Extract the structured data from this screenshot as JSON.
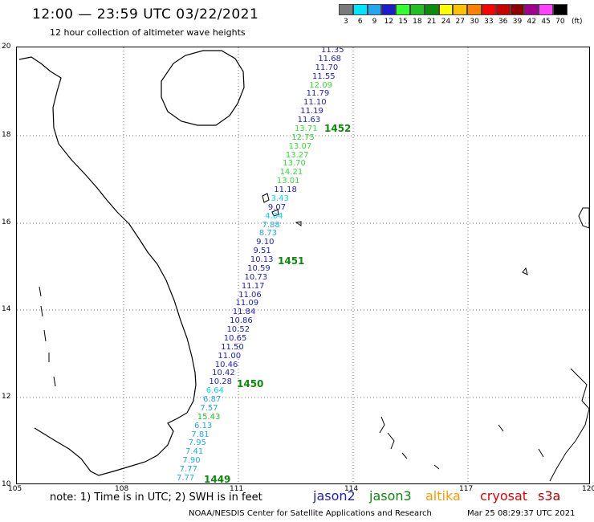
{
  "header": {
    "title": "12:00 — 23:59 UTC 03/22/2021",
    "subtitle": "12 hour collection of altimeter wave heights"
  },
  "scale": {
    "unit": "(ft)",
    "steps": [
      {
        "label": "3",
        "color": "#7a7a7a"
      },
      {
        "label": "6",
        "color": "#00e5ff"
      },
      {
        "label": "9",
        "color": "#22a7f0"
      },
      {
        "label": "12",
        "color": "#1c1cc8"
      },
      {
        "label": "15",
        "color": "#33ff33"
      },
      {
        "label": "18",
        "color": "#22c022"
      },
      {
        "label": "21",
        "color": "#0c8c0c"
      },
      {
        "label": "24",
        "color": "#ffff00"
      },
      {
        "label": "27",
        "color": "#ffc000"
      },
      {
        "label": "30",
        "color": "#ff8000"
      },
      {
        "label": "33",
        "color": "#ff0000"
      },
      {
        "label": "36",
        "color": "#c80000"
      },
      {
        "label": "39",
        "color": "#8c0000"
      },
      {
        "label": "42",
        "color": "#a00090"
      },
      {
        "label": "45",
        "color": "#ff40ff"
      },
      {
        "label": "70",
        "color": "#000000"
      }
    ]
  },
  "axes": {
    "lat_labels": [
      "20",
      "18",
      "16",
      "14",
      "12",
      "10"
    ],
    "lon_labels": [
      "105",
      "108",
      "111",
      "114",
      "117",
      "120"
    ]
  },
  "wave_heights": [
    {
      "v": "11.35",
      "c": "#1c1cc8"
    },
    {
      "v": "11.68",
      "c": "#1c1cc8"
    },
    {
      "v": "11.70",
      "c": "#1c1cc8"
    },
    {
      "v": "11.55",
      "c": "#1c1cc8"
    },
    {
      "v": "12.09",
      "c": "#33dd33"
    },
    {
      "v": "11.79",
      "c": "#1c1cc8"
    },
    {
      "v": "11.10",
      "c": "#1c1cc8"
    },
    {
      "v": "11.19",
      "c": "#1c1cc8"
    },
    {
      "v": "11.63",
      "c": "#1c1cc8"
    },
    {
      "v": "13.71",
      "c": "#33dd33"
    },
    {
      "v": "12.75",
      "c": "#33dd33"
    },
    {
      "v": "13.07",
      "c": "#33dd33"
    },
    {
      "v": "13.27",
      "c": "#33dd33"
    },
    {
      "v": "13.70",
      "c": "#33dd33"
    },
    {
      "v": "14.21",
      "c": "#33dd33"
    },
    {
      "v": "13.01",
      "c": "#33dd33"
    },
    {
      "v": "11.18",
      "c": "#1c1cc8"
    },
    {
      "v": "3.43",
      "c": "#00d8f0"
    },
    {
      "v": "9.07",
      "c": "#1c1cc8"
    },
    {
      "v": "4.04",
      "c": "#00d8f0"
    },
    {
      "v": "7.88",
      "c": "#22a7f0"
    },
    {
      "v": "8.73",
      "c": "#22a7f0"
    },
    {
      "v": "9.10",
      "c": "#1c1cc8"
    },
    {
      "v": "9.51",
      "c": "#1c1cc8"
    },
    {
      "v": "10.13",
      "c": "#1c1cc8"
    },
    {
      "v": "10.59",
      "c": "#1c1cc8"
    },
    {
      "v": "10.73",
      "c": "#1c1cc8"
    },
    {
      "v": "11.17",
      "c": "#1c1cc8"
    },
    {
      "v": "11.06",
      "c": "#1c1cc8"
    },
    {
      "v": "11.09",
      "c": "#1c1cc8"
    },
    {
      "v": "11.84",
      "c": "#1c1cc8"
    },
    {
      "v": "10.86",
      "c": "#1c1cc8"
    },
    {
      "v": "10.52",
      "c": "#1c1cc8"
    },
    {
      "v": "10.65",
      "c": "#1c1cc8"
    },
    {
      "v": "11.50",
      "c": "#1c1cc8"
    },
    {
      "v": "11.00",
      "c": "#1c1cc8"
    },
    {
      "v": "10.46",
      "c": "#1c1cc8"
    },
    {
      "v": "10.42",
      "c": "#1c1cc8"
    },
    {
      "v": "10.28",
      "c": "#1c1cc8"
    },
    {
      "v": "6.64",
      "c": "#00d8f0"
    },
    {
      "v": "6.87",
      "c": "#22a7f0"
    },
    {
      "v": "7.57",
      "c": "#22a7f0"
    },
    {
      "v": "15.43",
      "c": "#22c022"
    },
    {
      "v": "6.13",
      "c": "#22a7f0"
    },
    {
      "v": "7.81",
      "c": "#22a7f0"
    },
    {
      "v": "7.95",
      "c": "#22a7f0"
    },
    {
      "v": "7.41",
      "c": "#22a7f0"
    },
    {
      "v": "7.90",
      "c": "#22a7f0"
    },
    {
      "v": "7.77",
      "c": "#22a7f0"
    },
    {
      "v": "7.77",
      "c": "#22a7f0"
    }
  ],
  "pass_times": [
    "1452",
    "1451",
    "1450",
    "1449"
  ],
  "footer": {
    "note": "note:  1) Time is in UTC;  2) SWH is in feet",
    "satellites": [
      {
        "name": "jason2",
        "color": "#1c1cc8"
      },
      {
        "name": "jason3",
        "color": "#0a8a0a"
      },
      {
        "name": "altika",
        "color": "#ff9a00"
      },
      {
        "name": "cryosat",
        "color": "#e00000"
      },
      {
        "name": "s3a",
        "color": "#b80000"
      }
    ],
    "credit": "NOAA/NESDIS Center for Satellite Applications and Research",
    "timestamp": "Mar 25 08:29:37 UTC 2021"
  }
}
